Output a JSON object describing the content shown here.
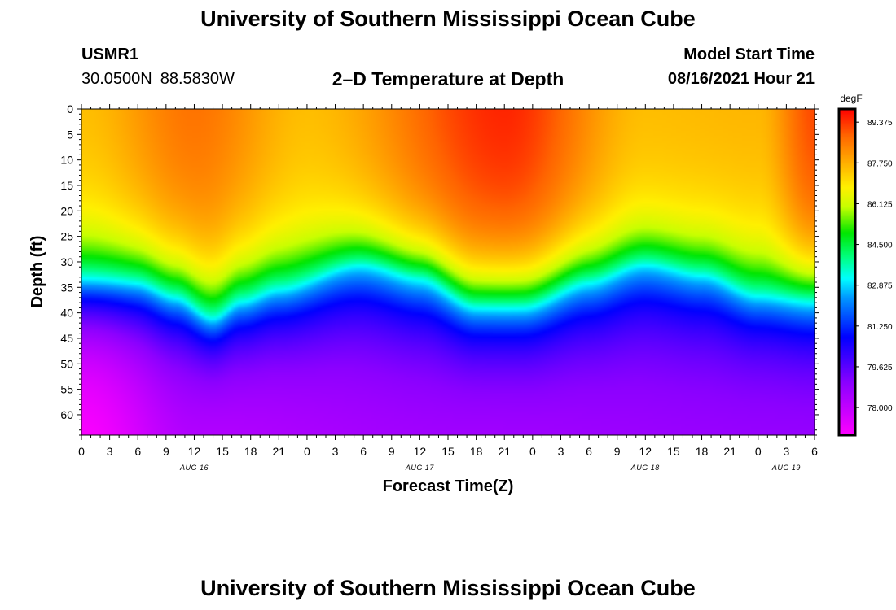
{
  "header": {
    "title": "University of Southern Mississippi Ocean Cube",
    "station_id": "USMR1",
    "latitude": "30.0500N",
    "longitude": "88.5830W",
    "chart_title": "2–D Temperature at Depth",
    "model_label": "Model Start Time",
    "model_time": "08/16/2021 Hour 21"
  },
  "footer": {
    "title": "University of Southern Mississippi Ocean Cube"
  },
  "chart_data": {
    "type": "heatmap",
    "title": "2–D Temperature at Depth",
    "xlabel": "Forecast Time(Z)",
    "ylabel": "Depth (ft)",
    "x_ticks": [
      "0",
      "3",
      "6",
      "9",
      "12",
      "15",
      "18",
      "21",
      "0",
      "3",
      "6",
      "9",
      "12",
      "15",
      "18",
      "21",
      "0",
      "3",
      "6",
      "9",
      "12",
      "15",
      "18",
      "21",
      "0",
      "3",
      "6"
    ],
    "x_range_hours": [
      0,
      78
    ],
    "date_labels": [
      {
        "text": "AUG 16",
        "hour": 12
      },
      {
        "text": "AUG 17",
        "hour": 36
      },
      {
        "text": "AUG 18",
        "hour": 60
      },
      {
        "text": "AUG 19",
        "hour": 75
      }
    ],
    "y_ticks": [
      0,
      5,
      10,
      15,
      20,
      25,
      30,
      35,
      40,
      45,
      50,
      55,
      60
    ],
    "ylim": [
      0,
      64
    ],
    "colorbar": {
      "unit": "degF",
      "min": 76.9,
      "max": 89.9,
      "tick_labels": [
        "89.375",
        "87.750",
        "86.125",
        "84.500",
        "82.875",
        "81.250",
        "79.625",
        "78.000"
      ],
      "tick_values": [
        89.375,
        87.75,
        86.125,
        84.5,
        82.875,
        81.25,
        79.625,
        78.0
      ]
    },
    "thermocline_depth_ft": [
      {
        "hour": 0,
        "depth": 35
      },
      {
        "hour": 6,
        "depth": 35
      },
      {
        "hour": 10,
        "depth": 37
      },
      {
        "hour": 14,
        "depth": 41
      },
      {
        "hour": 17,
        "depth": 38
      },
      {
        "hour": 21,
        "depth": 36
      },
      {
        "hour": 30,
        "depth": 31
      },
      {
        "hour": 36,
        "depth": 33
      },
      {
        "hour": 42,
        "depth": 38
      },
      {
        "hour": 47,
        "depth": 38
      },
      {
        "hour": 54,
        "depth": 34
      },
      {
        "hour": 60,
        "depth": 31
      },
      {
        "hour": 66,
        "depth": 33
      },
      {
        "hour": 72,
        "depth": 37
      },
      {
        "hour": 78,
        "depth": 37
      }
    ],
    "surface_temp_degF": [
      {
        "hour": 0,
        "temp": 87.6
      },
      {
        "hour": 12,
        "temp": 88.7
      },
      {
        "hour": 24,
        "temp": 87.6
      },
      {
        "hour": 45,
        "temp": 89.6
      },
      {
        "hour": 60,
        "temp": 87.6
      },
      {
        "hour": 72,
        "temp": 87.7
      },
      {
        "hour": 78,
        "temp": 89.2
      }
    ],
    "bottom_temp_degF": [
      {
        "hour": 0,
        "temp": 77.0
      },
      {
        "hour": 12,
        "temp": 78.3
      },
      {
        "hour": 40,
        "temp": 78.6
      },
      {
        "hour": 78,
        "temp": 78.8
      }
    ]
  }
}
